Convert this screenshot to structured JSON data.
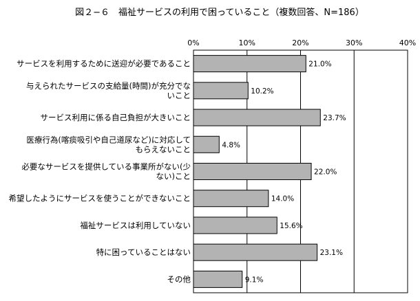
{
  "chart_data": {
    "type": "bar",
    "orientation": "horizontal",
    "title": "図２−６　福祉サービスの利用で困っていること（複数回答、N=186）",
    "xlabel": "",
    "ylabel": "",
    "xlim": [
      0,
      40
    ],
    "x_ticks": [
      "0%",
      "10%",
      "20%",
      "30%",
      "40%"
    ],
    "grid": true,
    "legend": "none",
    "value_suffix": "%",
    "bar_color": "#b3b3b3",
    "categories": [
      [
        "サービスを利用するために送迎が必要であること"
      ],
      [
        "与えられたサービスの支給量(時間)が充分でな",
        "いこと"
      ],
      [
        "サービス利用に係る自己負担が大きいこと"
      ],
      [
        "医療行為(喀痰吸引や自己道尿など)に対応して",
        "もらえないこと"
      ],
      [
        "必要なサービスを提供している事業所がない(少",
        "ない)こと"
      ],
      [
        "希望したようにサービスを使うことができないこと"
      ],
      [
        "福祉サービスは利用していない"
      ],
      [
        "特に困っていることはない"
      ],
      [
        "その他"
      ]
    ],
    "values": [
      21.0,
      10.2,
      23.7,
      4.8,
      22.0,
      14.0,
      15.6,
      23.1,
      9.1
    ]
  }
}
